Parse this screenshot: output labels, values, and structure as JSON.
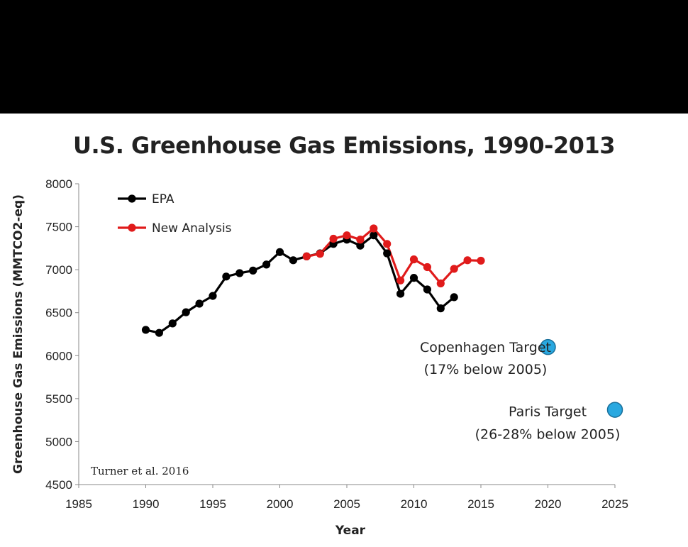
{
  "chart_data": {
    "type": "line",
    "title": "U.S. Greenhouse Gas Emissions, 1990-2013",
    "xlabel": "Year",
    "ylabel": "Greenhouse Gas Emissions (MMTCO2-eq)",
    "xlim": [
      1985,
      2025
    ],
    "ylim": [
      4500,
      8000
    ],
    "xticks": [
      1985,
      1990,
      1995,
      2000,
      2005,
      2010,
      2015,
      2020,
      2025
    ],
    "yticks": [
      4500,
      5000,
      5500,
      6000,
      6500,
      7000,
      7500,
      8000
    ],
    "series": [
      {
        "name": "EPA",
        "color": "#000000",
        "x": [
          1990,
          1991,
          1992,
          1993,
          1994,
          1995,
          1996,
          1997,
          1998,
          1999,
          2000,
          2001,
          2002,
          2003,
          2004,
          2005,
          2006,
          2007,
          2008,
          2009,
          2010,
          2011,
          2012,
          2013
        ],
        "y": [
          6300,
          6265,
          6375,
          6505,
          6605,
          6695,
          6920,
          6960,
          6990,
          7060,
          7205,
          7110,
          7155,
          7190,
          7300,
          7350,
          7280,
          7400,
          7190,
          6720,
          6905,
          6770,
          6550,
          6680
        ]
      },
      {
        "name": "New Analysis",
        "color": "#e01b1b",
        "x": [
          2002,
          2003,
          2004,
          2005,
          2006,
          2007,
          2008,
          2009,
          2010,
          2011,
          2012,
          2013,
          2014,
          2015
        ],
        "y": [
          7155,
          7185,
          7360,
          7400,
          7350,
          7480,
          7300,
          6875,
          7120,
          7030,
          6840,
          7010,
          7110,
          7105
        ]
      }
    ],
    "targets": [
      {
        "name": "Copenhagen Target",
        "detail": "(17% below 2005)",
        "x": 2020,
        "y": 6100,
        "color": "#29a8e0"
      },
      {
        "name": "Paris Target",
        "detail": "(26-28% below 2005)",
        "x": 2025,
        "y": 5370,
        "color": "#29a8e0"
      }
    ],
    "legend": "top-left",
    "grid": false,
    "annotation": "Turner et al. 2016"
  }
}
